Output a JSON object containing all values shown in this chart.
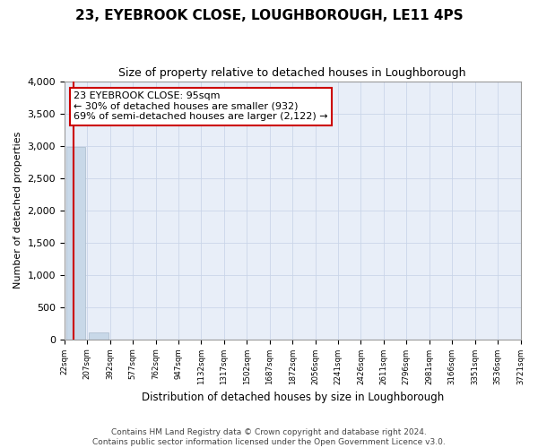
{
  "title": "23, EYEBROOK CLOSE, LOUGHBOROUGH, LE11 4PS",
  "subtitle": "Size of property relative to detached houses in Loughborough",
  "xlabel": "Distribution of detached houses by size in Loughborough",
  "ylabel": "Number of detached properties",
  "footer_line1": "Contains HM Land Registry data © Crown copyright and database right 2024.",
  "footer_line2": "Contains public sector information licensed under the Open Government Licence v3.0.",
  "annotation_line1": "23 EYEBROOK CLOSE: 95sqm",
  "annotation_line2": "← 30% of detached houses are smaller (932)",
  "annotation_line3": "69% of semi-detached houses are larger (2,122) →",
  "bar_color": "#c8d8e8",
  "grid_color": "#c8d4e8",
  "background_color": "#ffffff",
  "plot_bg_color": "#e8eef8",
  "annotation_box_color": "#ffffff",
  "annotation_box_edge": "#cc0000",
  "vline_color": "#cc0000",
  "ylim": [
    0,
    4000
  ],
  "yticks": [
    0,
    500,
    1000,
    1500,
    2000,
    2500,
    3000,
    3500,
    4000
  ],
  "bar_heights": [
    2979,
    110,
    0,
    0,
    0,
    0,
    0,
    0,
    0,
    0,
    0,
    0,
    0,
    0,
    0,
    0,
    0,
    0,
    0,
    0
  ],
  "tick_labels": [
    "22sqm",
    "207sqm",
    "392sqm",
    "577sqm",
    "762sqm",
    "947sqm",
    "1132sqm",
    "1317sqm",
    "1502sqm",
    "1687sqm",
    "1872sqm",
    "2056sqm",
    "2241sqm",
    "2426sqm",
    "2611sqm",
    "2796sqm",
    "2981sqm",
    "3166sqm",
    "3351sqm",
    "3536sqm",
    "3721sqm"
  ],
  "vline_x_index": 0.4
}
